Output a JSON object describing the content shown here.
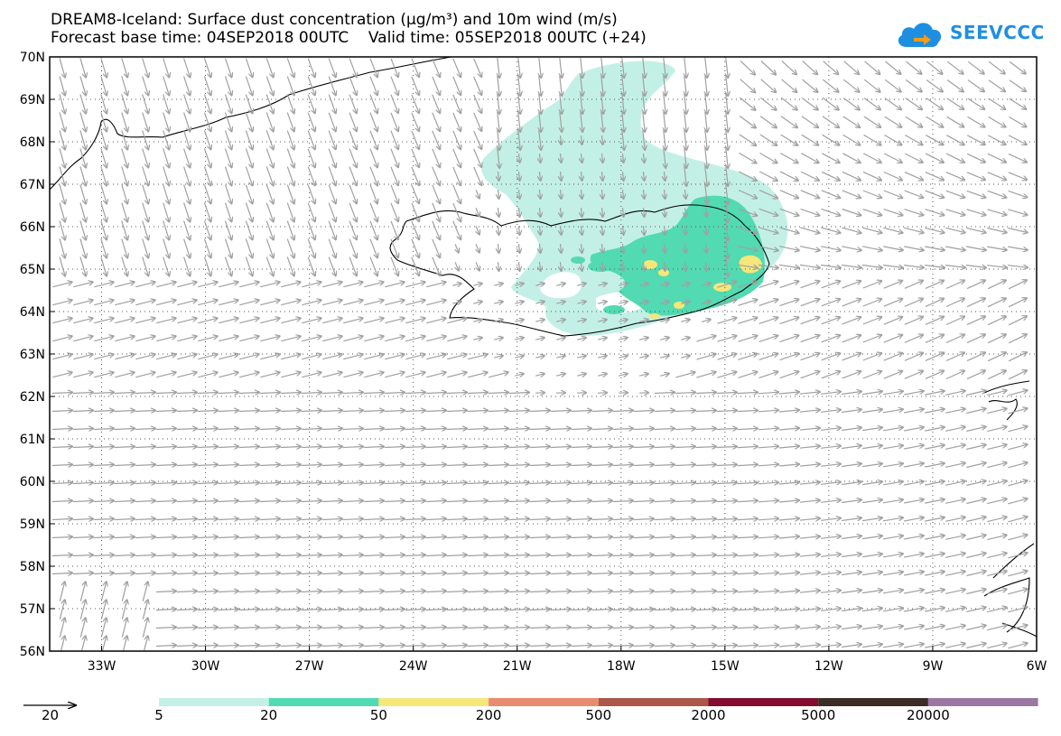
{
  "title_line1": "DREAM8-Iceland: Surface dust concentration (µg/m³) and 10m wind (m/s)",
  "title_line2": "Forecast base time: 04SEP2018 00UTC    Valid time: 05SEP2018 00UTC (+24)",
  "logo_text": "SEEVCCC",
  "map": {
    "lat_labels": [
      "70N",
      "69N",
      "68N",
      "67N",
      "66N",
      "65N",
      "64N",
      "63N",
      "62N",
      "61N",
      "60N",
      "59N",
      "58N",
      "57N",
      "56N"
    ],
    "lon_labels": [
      "33W",
      "30W",
      "27W",
      "24W",
      "21W",
      "18W",
      "15W",
      "12W",
      "9W",
      "6W"
    ],
    "lat_range": [
      56,
      70
    ],
    "lon_range": [
      -34.5,
      -6
    ],
    "grid": "dotted"
  },
  "wind_reference": {
    "value": 20,
    "label": "20"
  },
  "colorbar": {
    "labels": [
      "5",
      "20",
      "50",
      "200",
      "500",
      "2000",
      "5000",
      "20000"
    ],
    "colors": [
      "#c3f0e6",
      "#52dab2",
      "#f5e77a",
      "#e88c70",
      "#a9584a",
      "#830c2f",
      "#3b2c24",
      "#9b77a4"
    ]
  },
  "colors": {
    "coast": "#000000",
    "wind_arrow": "#a0a0a0",
    "logo": "#1e8fe0"
  }
}
